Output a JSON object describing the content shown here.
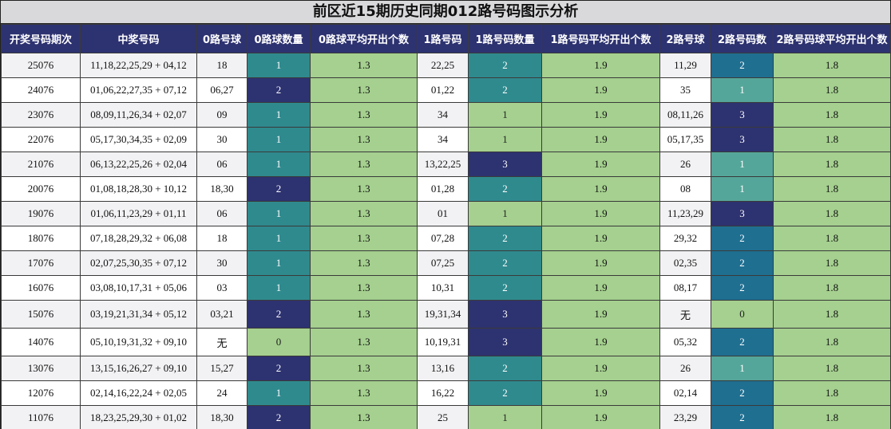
{
  "title": "前区近15期历史同期012路号码图示分析",
  "headers": [
    "开奖号码期次",
    "中奖号码",
    "0路号球",
    "0路球数量",
    "0路球平均开出个数",
    "1路号码",
    "1路号码数量",
    "1路号码平均开出个数",
    "2路号球",
    "2路号码数",
    "2路号码球平均开出个数"
  ],
  "rows": [
    {
      "period": "25076",
      "numbers": "11,18,22,25,29 + 04,12",
      "r0": "18",
      "r0n": "1",
      "r0avg": "1.3",
      "r1": "22,25",
      "r1n": "2",
      "r1avg": "1.9",
      "r2": "11,29",
      "r2n": "2",
      "r2avg": "1.8"
    },
    {
      "period": "24076",
      "numbers": "01,06,22,27,35 + 07,12",
      "r0": "06,27",
      "r0n": "2",
      "r0avg": "1.3",
      "r1": "01,22",
      "r1n": "2",
      "r1avg": "1.9",
      "r2": "35",
      "r2n": "1",
      "r2avg": "1.8"
    },
    {
      "period": "23076",
      "numbers": "08,09,11,26,34 + 02,07",
      "r0": "09",
      "r0n": "1",
      "r0avg": "1.3",
      "r1": "34",
      "r1n": "1",
      "r1avg": "1.9",
      "r2": "08,11,26",
      "r2n": "3",
      "r2avg": "1.8"
    },
    {
      "period": "22076",
      "numbers": "05,17,30,34,35 + 02,09",
      "r0": "30",
      "r0n": "1",
      "r0avg": "1.3",
      "r1": "34",
      "r1n": "1",
      "r1avg": "1.9",
      "r2": "05,17,35",
      "r2n": "3",
      "r2avg": "1.8"
    },
    {
      "period": "21076",
      "numbers": "06,13,22,25,26 + 02,04",
      "r0": "06",
      "r0n": "1",
      "r0avg": "1.3",
      "r1": "13,22,25",
      "r1n": "3",
      "r1avg": "1.9",
      "r2": "26",
      "r2n": "1",
      "r2avg": "1.8"
    },
    {
      "period": "20076",
      "numbers": "01,08,18,28,30 + 10,12",
      "r0": "18,30",
      "r0n": "2",
      "r0avg": "1.3",
      "r1": "01,28",
      "r1n": "2",
      "r1avg": "1.9",
      "r2": "08",
      "r2n": "1",
      "r2avg": "1.8"
    },
    {
      "period": "19076",
      "numbers": "01,06,11,23,29 + 01,11",
      "r0": "06",
      "r0n": "1",
      "r0avg": "1.3",
      "r1": "01",
      "r1n": "1",
      "r1avg": "1.9",
      "r2": "11,23,29",
      "r2n": "3",
      "r2avg": "1.8"
    },
    {
      "period": "18076",
      "numbers": "07,18,28,29,32 + 06,08",
      "r0": "18",
      "r0n": "1",
      "r0avg": "1.3",
      "r1": "07,28",
      "r1n": "2",
      "r1avg": "1.9",
      "r2": "29,32",
      "r2n": "2",
      "r2avg": "1.8"
    },
    {
      "period": "17076",
      "numbers": "02,07,25,30,35 + 07,12",
      "r0": "30",
      "r0n": "1",
      "r0avg": "1.3",
      "r1": "07,25",
      "r1n": "2",
      "r1avg": "1.9",
      "r2": "02,35",
      "r2n": "2",
      "r2avg": "1.8"
    },
    {
      "period": "16076",
      "numbers": "03,08,10,17,31 + 05,06",
      "r0": "03",
      "r0n": "1",
      "r0avg": "1.3",
      "r1": "10,31",
      "r1n": "2",
      "r1avg": "1.9",
      "r2": "08,17",
      "r2n": "2",
      "r2avg": "1.8"
    },
    {
      "period": "15076",
      "numbers": "03,19,21,31,34 + 05,12",
      "r0": "03,21",
      "r0n": "2",
      "r0avg": "1.3",
      "r1": "19,31,34",
      "r1n": "3",
      "r1avg": "1.9",
      "r2": "无",
      "r2n": "0",
      "r2avg": "1.8"
    },
    {
      "period": "14076",
      "numbers": "05,10,19,31,32 + 09,10",
      "r0": "无",
      "r0n": "0",
      "r0avg": "1.3",
      "r1": "10,19,31",
      "r1n": "3",
      "r1avg": "1.9",
      "r2": "05,32",
      "r2n": "2",
      "r2avg": "1.8"
    },
    {
      "period": "13076",
      "numbers": "13,15,16,26,27 + 09,10",
      "r0": "15,27",
      "r0n": "2",
      "r0avg": "1.3",
      "r1": "13,16",
      "r1n": "2",
      "r1avg": "1.9",
      "r2": "26",
      "r2n": "1",
      "r2avg": "1.8"
    },
    {
      "period": "12076",
      "numbers": "02,14,16,22,24 + 02,05",
      "r0": "24",
      "r0n": "1",
      "r0avg": "1.3",
      "r1": "16,22",
      "r1n": "2",
      "r1avg": "1.9",
      "r2": "02,14",
      "r2n": "2",
      "r2avg": "1.8"
    },
    {
      "period": "11076",
      "numbers": "18,23,25,29,30 + 01,02",
      "r0": "18,30",
      "r0n": "2",
      "r0avg": "1.3",
      "r1": "25",
      "r1n": "1",
      "r1avg": "1.9",
      "r2": "23,29",
      "r2n": "2",
      "r2avg": "1.8"
    }
  ],
  "colors": {
    "header": "#2d3270",
    "count_0": "#a5d08f",
    "count_1_r0": "#2f8a8e",
    "count_1_r2": "#55a69a",
    "count_2_r0": "#2d3270",
    "count_2_r1": "#2f8a8e",
    "count_2_r2": "#1f6f91",
    "count_3": "#2d3270",
    "average": "#a5d08f"
  }
}
